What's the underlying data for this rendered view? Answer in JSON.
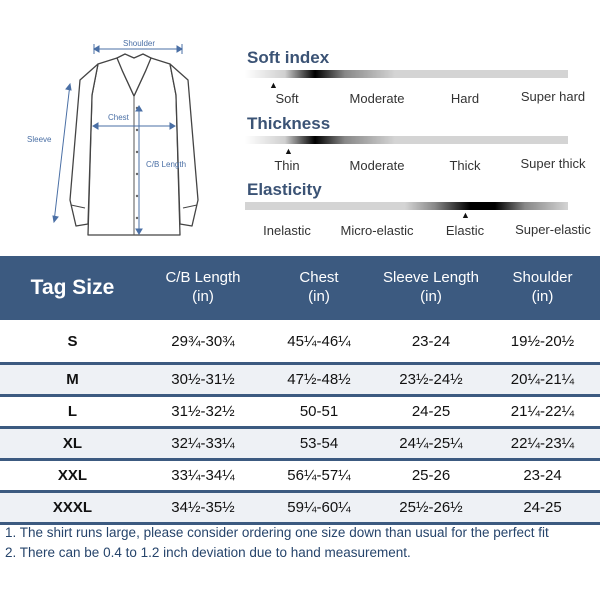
{
  "diagram": {
    "shoulder_label": "Shoulder",
    "chest_label": "Chest",
    "sleeve_label": "Sleeve",
    "length_label": "C/B Length"
  },
  "properties": [
    {
      "title": "Soft index",
      "options": [
        "Soft",
        "Moderate",
        "Hard",
        "Super hard"
      ],
      "selected_index": 0
    },
    {
      "title": "Thickness",
      "options": [
        "Thin",
        "Moderate",
        "Thick",
        "Super thick"
      ],
      "selected_index": 0
    },
    {
      "title": "Elasticity",
      "options": [
        "Inelastic",
        "Micro-elastic",
        "Elastic",
        "Super-elastic"
      ],
      "selected_index": 2
    }
  ],
  "table": {
    "headers": [
      {
        "line1": "Tag Size",
        "line2": ""
      },
      {
        "line1": "C/B Length",
        "line2": "(in)"
      },
      {
        "line1": "Chest",
        "line2": "(in)"
      },
      {
        "line1": "Sleeve Length",
        "line2": "(in)"
      },
      {
        "line1": "Shoulder",
        "line2": "(in)"
      }
    ],
    "rows": [
      [
        "S",
        "29¾-30¾",
        "45¼-46¼",
        "23-24",
        "19½-20½"
      ],
      [
        "M",
        "30½-31½",
        "47½-48½",
        "23½-24½",
        "20¼-21¼"
      ],
      [
        "L",
        "31½-32½",
        "50-51",
        "24-25",
        "21¼-22¼"
      ],
      [
        "XL",
        "32¼-33¼",
        "53-54",
        "24¼-25¼",
        "22¼-23¼"
      ],
      [
        "XXL",
        "33¼-34¼",
        "56¼-57¼",
        "25-26",
        "23-24"
      ],
      [
        "XXXL",
        "34½-35½",
        "59¼-60¼",
        "25½-26½",
        "24-25"
      ]
    ]
  },
  "notes": [
    "1.  The shirt runs large, please consider ordering one size down than usual for the perfect fit",
    "2. There can be 0.4 to 1.2 inch deviation due to hand measurement."
  ],
  "colors": {
    "header_bg": "#3c5a80",
    "title_color": "#3b5375",
    "note_color": "#26446b",
    "measure_color": "#4a6fa5"
  }
}
